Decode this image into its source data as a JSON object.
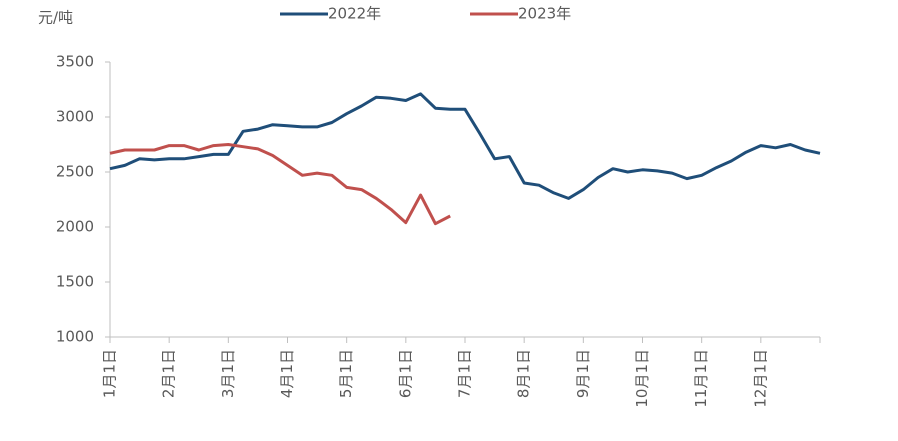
{
  "chart_data": {
    "type": "line",
    "y_label": "元/吨",
    "categories": [
      "1月1日",
      null,
      null,
      null,
      "2月1日",
      null,
      null,
      null,
      "3月1日",
      null,
      null,
      null,
      "4月1日",
      null,
      null,
      null,
      "5月1日",
      null,
      null,
      null,
      "6月1日",
      null,
      null,
      null,
      "7月1日",
      null,
      null,
      null,
      "8月1日",
      null,
      null,
      null,
      "9月1日",
      null,
      null,
      null,
      "10月1日",
      null,
      null,
      null,
      "11月1日",
      null,
      null,
      null,
      "12月1日",
      null,
      null,
      null,
      null
    ],
    "series": [
      {
        "name": "2022年",
        "color": "#1f4e79",
        "values": [
          2530,
          2560,
          2620,
          2610,
          2620,
          2620,
          2640,
          2660,
          2660,
          2870,
          2890,
          2930,
          2920,
          2910,
          2910,
          2950,
          3030,
          3100,
          3180,
          3170,
          3150,
          3210,
          3080,
          3070,
          3070,
          2850,
          2620,
          2640,
          2400,
          2380,
          2310,
          2260,
          2340,
          2450,
          2530,
          2500,
          2520,
          2510,
          2490,
          2440,
          2470,
          2540,
          2600,
          2680,
          2740,
          2720,
          2750,
          2700,
          2670
        ]
      },
      {
        "name": "2023年",
        "color": "#c0504d",
        "values": [
          2670,
          2700,
          2700,
          2700,
          2740,
          2740,
          2700,
          2740,
          2750,
          2730,
          2710,
          2650,
          2560,
          2470,
          2490,
          2470,
          2360,
          2340,
          2260,
          2160,
          2040,
          2290,
          2030,
          2100,
          null,
          null,
          null,
          null,
          null,
          null,
          null,
          null,
          null,
          null,
          null,
          null,
          null,
          null,
          null,
          null,
          null,
          null,
          null,
          null,
          null,
          null,
          null,
          null,
          null
        ]
      }
    ],
    "ylim": [
      1000,
      3500
    ],
    "yticks": [
      1000,
      1500,
      2000,
      2500,
      3000,
      3500
    ]
  }
}
